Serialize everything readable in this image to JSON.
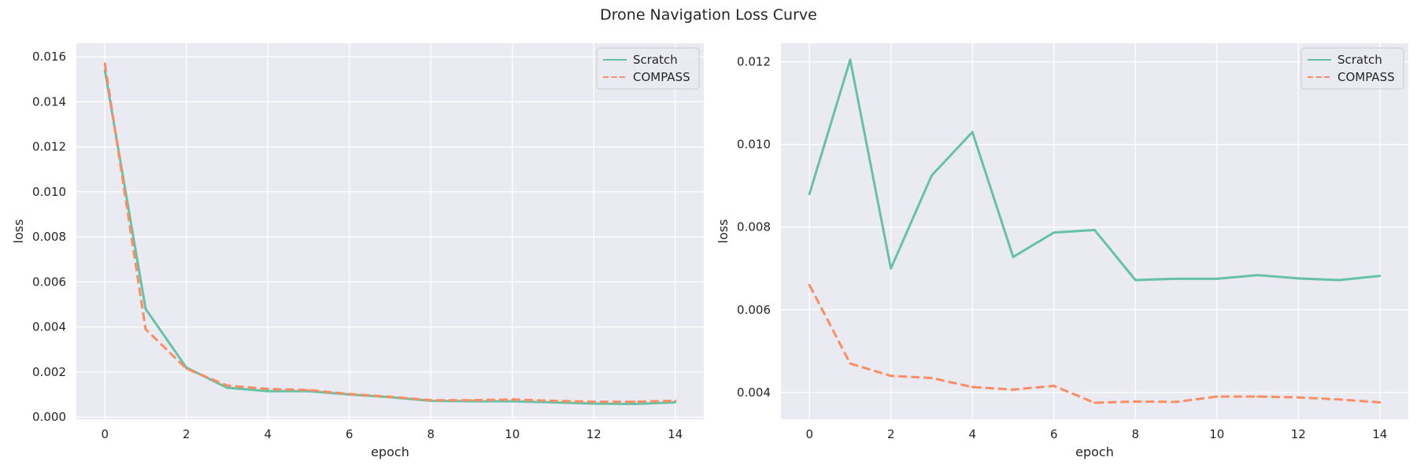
{
  "figure": {
    "title": "Drone Navigation Loss Curve"
  },
  "colors": {
    "background": "#eaeaf2",
    "grid": "#ffffff",
    "scratch": "#66c2a5",
    "compass": "#fc8d62"
  },
  "chart_data": [
    {
      "type": "line",
      "xlabel": "epoch",
      "ylabel": "loss",
      "xlim": [
        -0.7,
        14.7
      ],
      "ylim": [
        -0.0001,
        0.0166
      ],
      "xticks": [
        "0",
        "2",
        "4",
        "6",
        "8",
        "10",
        "12",
        "14"
      ],
      "yticks": [
        "0.000",
        "0.002",
        "0.004",
        "0.006",
        "0.008",
        "0.010",
        "0.012",
        "0.014",
        "0.016"
      ],
      "grid": true,
      "legend": "upper right",
      "x": [
        0,
        1,
        2,
        3,
        4,
        5,
        6,
        7,
        8,
        9,
        10,
        11,
        12,
        13,
        14
      ],
      "series": [
        {
          "name": "Scratch",
          "style": "solid",
          "values": [
            0.0154,
            0.0048,
            0.0022,
            0.0013,
            0.00115,
            0.00115,
            0.001,
            0.00088,
            0.00072,
            0.0007,
            0.0007,
            0.00065,
            0.0006,
            0.00058,
            0.00065
          ]
        },
        {
          "name": "COMPASS",
          "style": "dashed",
          "values": [
            0.0157,
            0.0039,
            0.00215,
            0.0014,
            0.00125,
            0.0012,
            0.00102,
            0.0009,
            0.00075,
            0.00075,
            0.00078,
            0.00072,
            0.00068,
            0.00068,
            0.00072
          ]
        }
      ]
    },
    {
      "type": "line",
      "xlabel": "epoch",
      "ylabel": "loss",
      "xlim": [
        -0.7,
        14.7
      ],
      "ylim": [
        0.00335,
        0.01245
      ],
      "xticks": [
        "0",
        "2",
        "4",
        "6",
        "8",
        "10",
        "12",
        "14"
      ],
      "yticks": [
        "0.004",
        "0.006",
        "0.008",
        "0.010",
        "0.012"
      ],
      "grid": true,
      "legend": "upper right",
      "x": [
        0,
        1,
        2,
        3,
        4,
        5,
        6,
        7,
        8,
        9,
        10,
        11,
        12,
        13,
        14
      ],
      "series": [
        {
          "name": "Scratch",
          "style": "solid",
          "values": [
            0.0088,
            0.01205,
            0.007,
            0.00925,
            0.0103,
            0.00728,
            0.00787,
            0.00793,
            0.00672,
            0.00675,
            0.00675,
            0.00684,
            0.00676,
            0.00672,
            0.00682
          ]
        },
        {
          "name": "COMPASS",
          "style": "dashed",
          "values": [
            0.0066,
            0.0047,
            0.0044,
            0.00435,
            0.00413,
            0.00407,
            0.00416,
            0.00375,
            0.00378,
            0.00377,
            0.0039,
            0.0039,
            0.00388,
            0.00383,
            0.00376
          ]
        }
      ]
    }
  ]
}
